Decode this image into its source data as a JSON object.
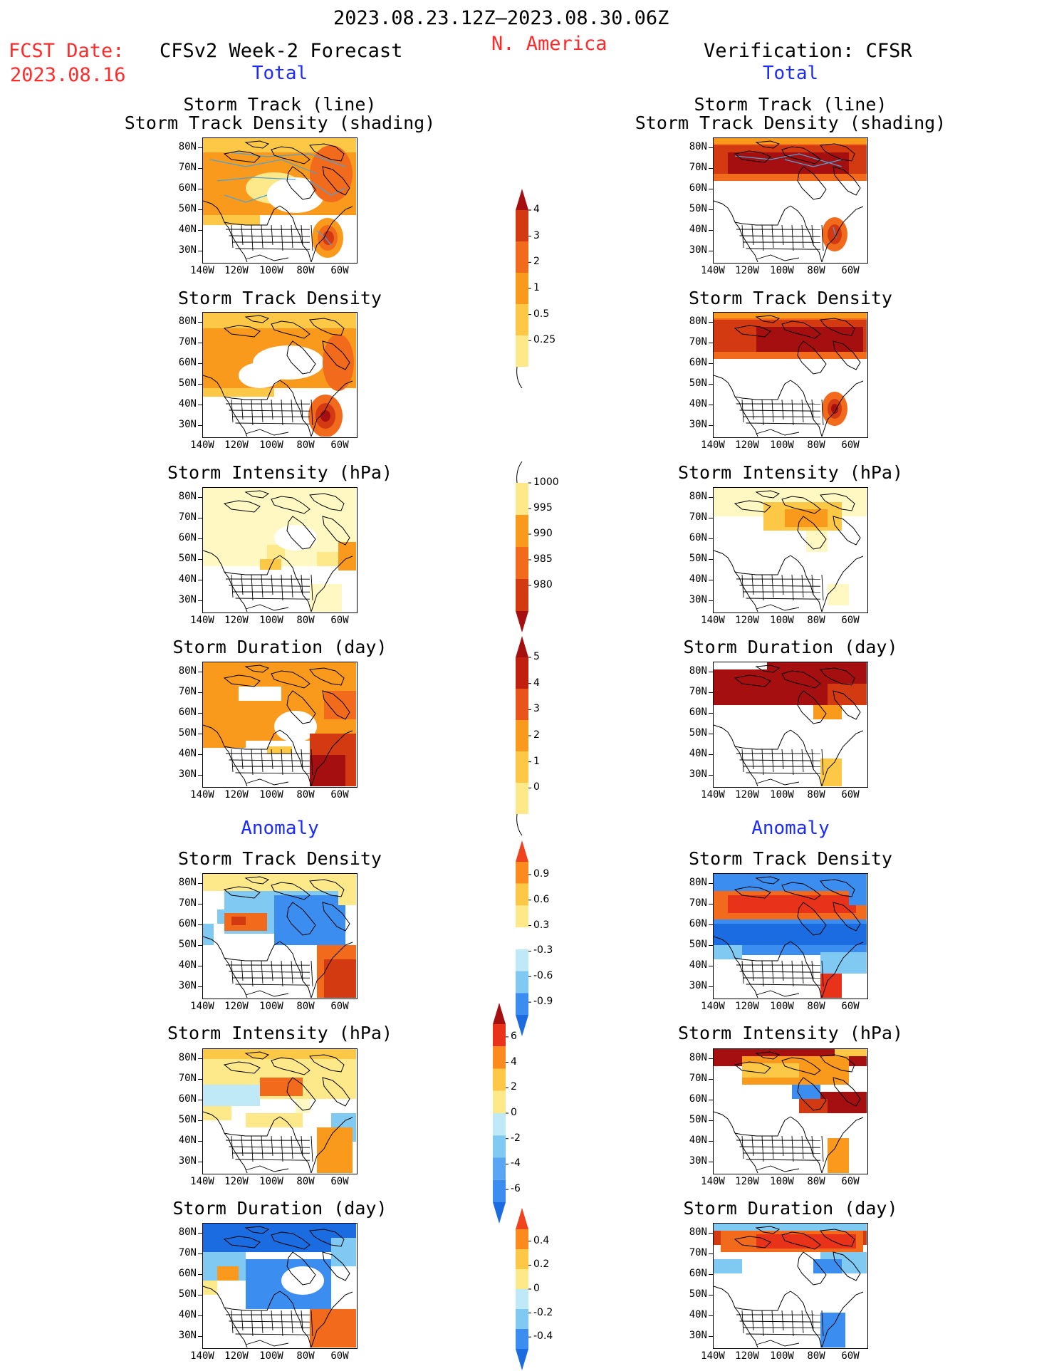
{
  "header": {
    "period": "2023.08.23.12Z–2023.08.30.06Z",
    "region": "N. America",
    "fcst_label": "FCST Date:",
    "fcst_date": "2023.08.16",
    "left_title": "CFSv2 Week-2 Forecast",
    "right_title": "Verification: CFSR",
    "left_total": "Total",
    "right_total": "Total",
    "left_anomaly": "Anomaly",
    "right_anomaly": "Anomaly"
  },
  "panel_titles": {
    "track_line": "Storm Track (line)",
    "track_density_shading": "Storm Track Density (shading)",
    "track_density": "Storm Track Density",
    "intensity": "Storm Intensity (hPa)",
    "duration": "Storm Duration (day)"
  },
  "axes": {
    "lat_labels": [
      "80N",
      "70N",
      "60N",
      "50N",
      "40N",
      "30N"
    ],
    "lon_labels": [
      "140W",
      "120W",
      "100W",
      "80W",
      "60W"
    ]
  },
  "colorbars": {
    "density_total": {
      "labels": [
        "4",
        "3",
        "2",
        "1",
        "0.5",
        "0.25"
      ],
      "colors": [
        "#a50f0f",
        "#d43a12",
        "#f26b1d",
        "#fa9a1c",
        "#fcc845",
        "#fde98a",
        "#fff8c2"
      ]
    },
    "intensity_total": {
      "labels": [
        "1000",
        "995",
        "990",
        "985",
        "980"
      ],
      "colors": [
        "#fff8c2",
        "#fde98a",
        "#fa9a1c",
        "#f26b1d",
        "#d43a12",
        "#a50f0f"
      ]
    },
    "duration_total": {
      "labels": [
        "5",
        "4",
        "3",
        "2",
        "1",
        "0"
      ],
      "colors": [
        "#a50f0f",
        "#c1200f",
        "#e8541a",
        "#fa9a1c",
        "#fcc845",
        "#fde98a",
        "#fff8c2"
      ]
    },
    "density_anom": {
      "labels": [
        "0.9",
        "0.6",
        "0.3",
        "-0.3",
        "-0.6",
        "-0.9"
      ],
      "colors": [
        "#f0421c",
        "#fb8a1f",
        "#fcc845",
        "#fde98a",
        "#ffffff",
        "#bfe9f6",
        "#7fc9f2",
        "#3b8ef0",
        "#1b6ce0"
      ]
    },
    "intensity_anom": {
      "labels": [
        "6",
        "4",
        "2",
        "0",
        "-2",
        "-4",
        "-6"
      ],
      "colors": [
        "#a50f0f",
        "#e8331a",
        "#fb8a1f",
        "#fcc845",
        "#fde98a",
        "#bfe9f6",
        "#7fc9f2",
        "#5aa6f2",
        "#3b8ef0",
        "#1b6ce0"
      ]
    },
    "duration_anom": {
      "labels": [
        "0.4",
        "0.2",
        "0",
        "-0.2",
        "-0.4"
      ],
      "colors": [
        "#f0421c",
        "#fb8a1f",
        "#fcc845",
        "#fde98a",
        "#bfe9f6",
        "#7fc9f2",
        "#3b8ef0",
        "#1b6ce0"
      ]
    }
  }
}
